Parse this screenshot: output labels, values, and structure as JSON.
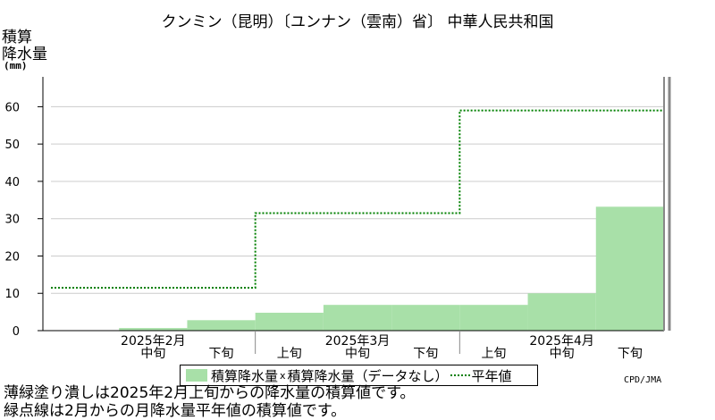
{
  "title": "クンミン（昆明）〔ユンナン（雲南）省〕 中華人民共和国",
  "ylabel_line1": "積算",
  "ylabel_line2": "降水量",
  "yunit": "(mm)",
  "credit": "CPD/JMA",
  "note_line1": "薄緑塗り潰しは2025年2月上旬からの降水量の積算値です。",
  "note_line2": "緑点線は2月からの月降水量平年値の積算値です。",
  "legend": {
    "bar_label": "積算降水量",
    "separator": "x",
    "missing_label": "積算降水量（データなし）",
    "line_label": "平年値"
  },
  "colors": {
    "bar": "#a8e0a8",
    "normal_line": "#008000",
    "grid": "#cccccc"
  },
  "chart_data": {
    "type": "area",
    "ylim": [
      0,
      68
    ],
    "yticks": [
      0,
      10,
      20,
      30,
      40,
      50,
      60
    ],
    "grid": true,
    "legend_position": "bottom",
    "periods": [
      "2025年2月上旬",
      "2025年2月中旬",
      "2025年2月下旬",
      "2025年3月上旬",
      "2025年3月中旬",
      "2025年3月下旬",
      "2025年4月上旬",
      "2025年4月中旬",
      "2025年4月下旬"
    ],
    "dekad_labels": [
      "中旬",
      "下旬",
      "上旬",
      "中旬",
      "下旬",
      "上旬",
      "中旬",
      "下旬"
    ],
    "month_labels": [
      "2025年2月",
      "2025年3月",
      "2025年4月"
    ],
    "series": [
      {
        "name": "積算降水量",
        "values": [
          0.7,
          2.8,
          4.8,
          6.9,
          6.9,
          6.9,
          10.0,
          33.2
        ]
      },
      {
        "name": "平年値",
        "values": [
          11.5,
          31.5,
          59.0
        ]
      }
    ]
  }
}
